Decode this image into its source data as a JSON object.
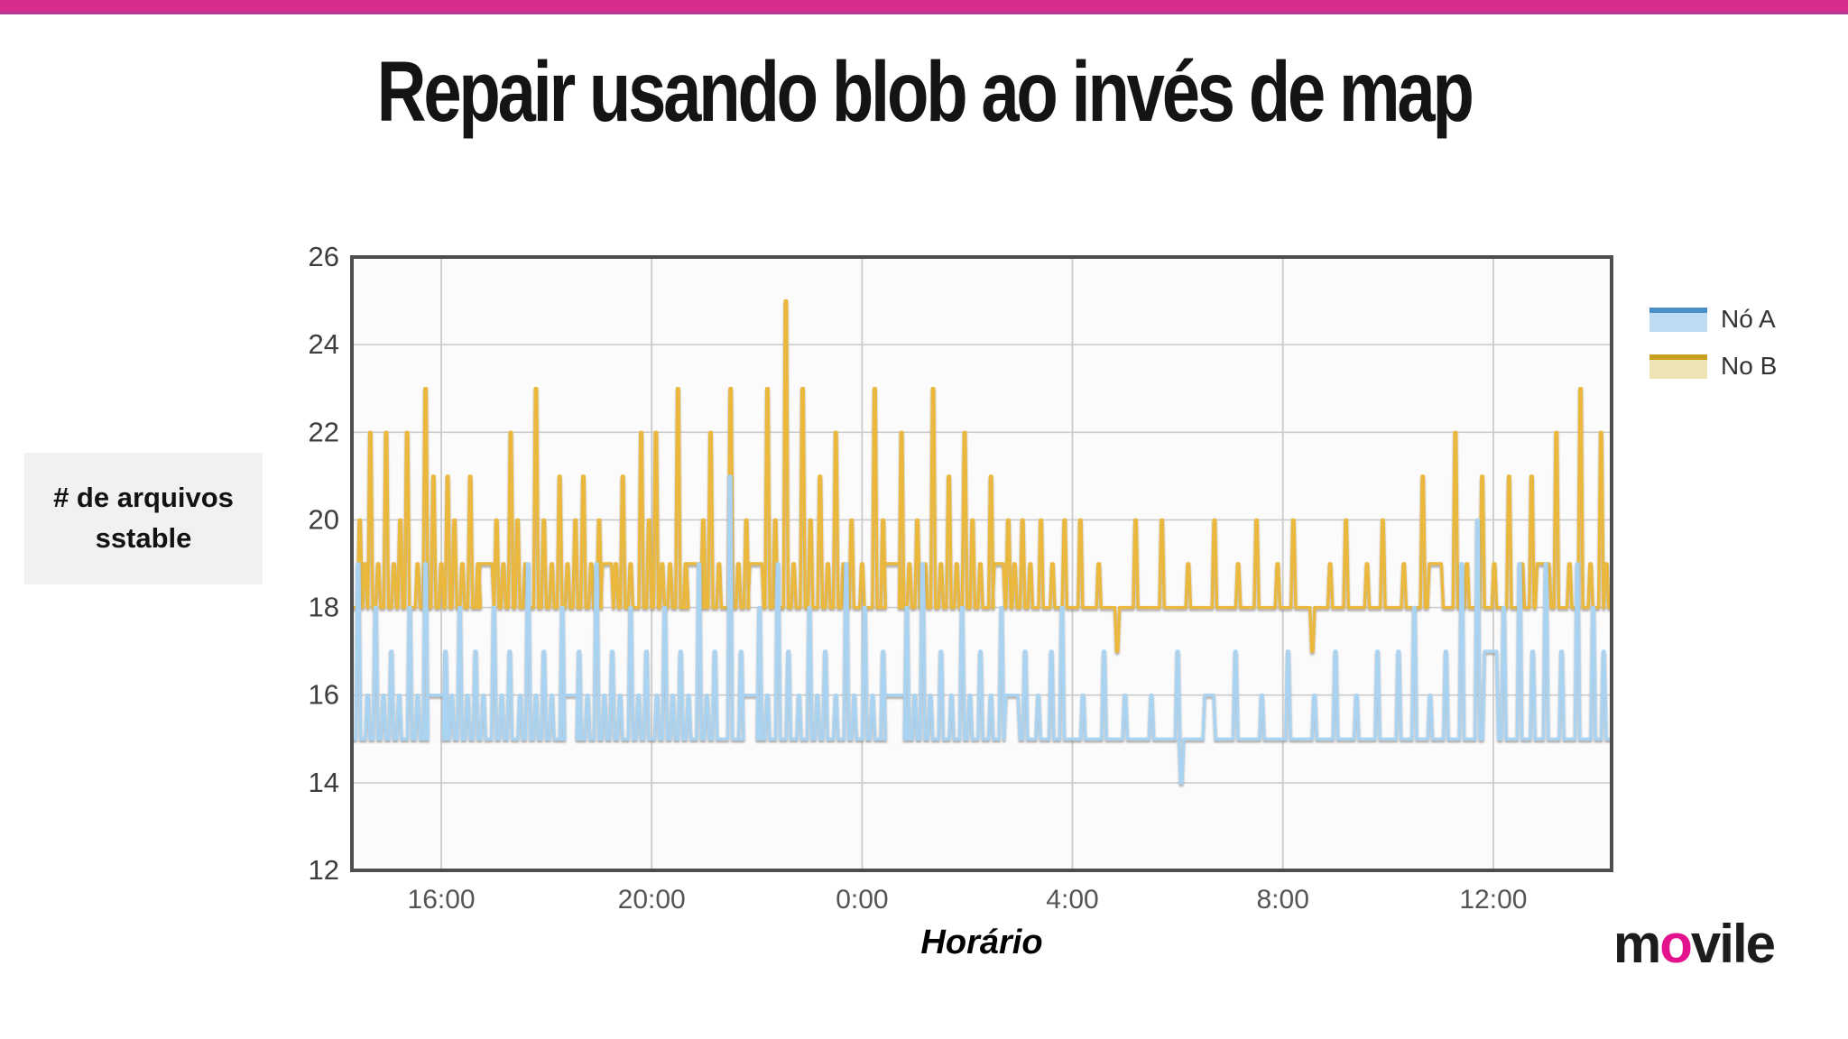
{
  "page": {
    "title": "Repair usando blob ao invés de map",
    "y_axis_label_line1": "# de arquivos",
    "y_axis_label_line2": "sstable",
    "x_axis_label": "Horário",
    "accent_pink": "#d62d8c",
    "accent_pink_dark": "#b13a92",
    "logo": {
      "part1": "m",
      "part2": "o",
      "part3": "vile",
      "o_color": "#e3138d"
    }
  },
  "chart_data": {
    "type": "line",
    "title": "",
    "xlabel": "Horário",
    "ylabel": "# de arquivos sstable",
    "grid": true,
    "legend_position": "right-outside",
    "x_range_hours": [
      14.3,
      38.25
    ],
    "ylim": [
      12,
      26
    ],
    "y_ticks": [
      12,
      14,
      16,
      18,
      20,
      22,
      24,
      26
    ],
    "x_ticks": [
      {
        "t": 16,
        "label": "16:00"
      },
      {
        "t": 20,
        "label": "20:00"
      },
      {
        "t": 24,
        "label": "0:00"
      },
      {
        "t": 28,
        "label": "4:00"
      },
      {
        "t": 32,
        "label": "8:00"
      },
      {
        "t": 36,
        "label": "12:00"
      }
    ],
    "frame_color": "#4d4d52",
    "gridline_color": "#cbcbcb",
    "plot_bg": "#fcfbfc",
    "tick_label_color": "#3d3d3d",
    "series": [
      {
        "name": "Nó A",
        "baseline": 15,
        "stroke": "#a9d3f1",
        "legend_stroke": "#4a8fc7",
        "legend_fill": "#bddcf4",
        "spikes": [
          [
            14.42,
            19
          ],
          [
            14.6,
            16
          ],
          [
            14.75,
            18
          ],
          [
            14.9,
            16
          ],
          [
            15.05,
            17
          ],
          [
            15.2,
            16
          ],
          [
            15.4,
            18
          ],
          [
            15.55,
            16
          ],
          [
            15.7,
            19
          ],
          [
            15.9,
            16,
            0.2
          ],
          [
            16.08,
            17
          ],
          [
            16.2,
            16
          ],
          [
            16.35,
            18
          ],
          [
            16.5,
            16
          ],
          [
            16.65,
            17
          ],
          [
            16.8,
            16
          ],
          [
            17.0,
            18
          ],
          [
            17.15,
            16
          ],
          [
            17.3,
            17
          ],
          [
            17.5,
            16
          ],
          [
            17.65,
            19
          ],
          [
            17.8,
            16
          ],
          [
            17.95,
            17
          ],
          [
            18.1,
            16
          ],
          [
            18.3,
            18
          ],
          [
            18.45,
            16,
            0.18
          ],
          [
            18.62,
            17
          ],
          [
            18.78,
            16
          ],
          [
            18.95,
            19
          ],
          [
            19.1,
            16
          ],
          [
            19.25,
            17
          ],
          [
            19.4,
            16
          ],
          [
            19.6,
            18
          ],
          [
            19.75,
            16
          ],
          [
            19.9,
            17
          ],
          [
            20.1,
            16
          ],
          [
            20.25,
            18
          ],
          [
            20.4,
            16
          ],
          [
            20.55,
            17
          ],
          [
            20.7,
            16
          ],
          [
            20.9,
            19
          ],
          [
            21.05,
            16
          ],
          [
            21.2,
            17
          ],
          [
            21.49,
            21
          ],
          [
            21.7,
            17
          ],
          [
            21.85,
            16,
            0.2
          ],
          [
            22.05,
            18
          ],
          [
            22.2,
            16
          ],
          [
            22.4,
            19
          ],
          [
            22.6,
            17
          ],
          [
            22.8,
            16
          ],
          [
            23.0,
            18
          ],
          [
            23.15,
            16
          ],
          [
            23.3,
            17
          ],
          [
            23.5,
            16
          ],
          [
            23.7,
            19
          ],
          [
            23.85,
            16
          ],
          [
            24.05,
            18
          ],
          [
            24.2,
            16
          ],
          [
            24.4,
            17
          ],
          [
            24.6,
            16,
            0.25
          ],
          [
            24.85,
            18
          ],
          [
            25.0,
            16
          ],
          [
            25.15,
            19
          ],
          [
            25.3,
            16
          ],
          [
            25.5,
            17
          ],
          [
            25.7,
            16
          ],
          [
            25.9,
            18
          ],
          [
            26.05,
            16
          ],
          [
            26.25,
            17
          ],
          [
            26.45,
            16
          ],
          [
            26.65,
            18
          ],
          [
            26.85,
            16,
            0.15
          ],
          [
            27.1,
            17
          ],
          [
            27.35,
            16
          ],
          [
            27.6,
            17
          ],
          [
            27.8,
            18
          ],
          [
            28.2,
            16
          ],
          [
            28.6,
            17
          ],
          [
            29.0,
            16
          ],
          [
            29.5,
            16
          ],
          [
            30.0,
            17
          ],
          [
            30.07,
            14
          ],
          [
            30.6,
            16,
            0.12
          ],
          [
            31.1,
            17
          ],
          [
            31.6,
            16
          ],
          [
            32.1,
            17
          ],
          [
            32.6,
            16
          ],
          [
            33.0,
            17
          ],
          [
            33.4,
            16
          ],
          [
            33.8,
            17
          ],
          [
            34.2,
            17
          ],
          [
            34.5,
            18
          ],
          [
            34.8,
            16
          ],
          [
            35.1,
            17
          ],
          [
            35.4,
            19
          ],
          [
            35.7,
            20
          ],
          [
            35.95,
            17,
            0.15
          ],
          [
            36.2,
            18
          ],
          [
            36.5,
            19
          ],
          [
            36.75,
            17
          ],
          [
            37.0,
            19
          ],
          [
            37.3,
            17
          ],
          [
            37.6,
            19
          ],
          [
            37.9,
            18
          ],
          [
            38.1,
            17
          ]
        ]
      },
      {
        "name": "No B",
        "baseline": 18,
        "stroke": "#e9b83e",
        "legend_stroke": "#c7a01f",
        "legend_fill": "#eee3b4",
        "spikes": [
          [
            14.45,
            20
          ],
          [
            14.55,
            19
          ],
          [
            14.65,
            22
          ],
          [
            14.8,
            19
          ],
          [
            14.95,
            22
          ],
          [
            15.1,
            19
          ],
          [
            15.22,
            20
          ],
          [
            15.35,
            22
          ],
          [
            15.55,
            19
          ],
          [
            15.7,
            23
          ],
          [
            15.85,
            21
          ],
          [
            16.0,
            19
          ],
          [
            16.12,
            21
          ],
          [
            16.25,
            20
          ],
          [
            16.4,
            19
          ],
          [
            16.55,
            21
          ],
          [
            16.7,
            19
          ],
          [
            16.85,
            19,
            0.15
          ],
          [
            17.05,
            20
          ],
          [
            17.18,
            19
          ],
          [
            17.32,
            22
          ],
          [
            17.45,
            20
          ],
          [
            17.6,
            19
          ],
          [
            17.8,
            23
          ],
          [
            17.95,
            20
          ],
          [
            18.1,
            19
          ],
          [
            18.25,
            21
          ],
          [
            18.4,
            19
          ],
          [
            18.55,
            20
          ],
          [
            18.7,
            21
          ],
          [
            18.85,
            19
          ],
          [
            19.0,
            20
          ],
          [
            19.15,
            19,
            0.12
          ],
          [
            19.32,
            19
          ],
          [
            19.45,
            21
          ],
          [
            19.6,
            19
          ],
          [
            19.8,
            22
          ],
          [
            19.95,
            20
          ],
          [
            20.08,
            22
          ],
          [
            20.2,
            19
          ],
          [
            20.35,
            19
          ],
          [
            20.5,
            23
          ],
          [
            20.65,
            19
          ],
          [
            20.8,
            19,
            0.18
          ],
          [
            20.98,
            20
          ],
          [
            21.12,
            22
          ],
          [
            21.28,
            19
          ],
          [
            21.5,
            23
          ],
          [
            21.65,
            19
          ],
          [
            21.8,
            20
          ],
          [
            21.98,
            19,
            0.15
          ],
          [
            22.2,
            23
          ],
          [
            22.35,
            20
          ],
          [
            22.55,
            25
          ],
          [
            22.7,
            19
          ],
          [
            22.87,
            23
          ],
          [
            23.02,
            20
          ],
          [
            23.2,
            21
          ],
          [
            23.35,
            19
          ],
          [
            23.5,
            22
          ],
          [
            23.65,
            19
          ],
          [
            23.8,
            20
          ],
          [
            24.0,
            19
          ],
          [
            24.24,
            23
          ],
          [
            24.4,
            20
          ],
          [
            24.55,
            19,
            0.2
          ],
          [
            24.75,
            22
          ],
          [
            24.9,
            19
          ],
          [
            25.05,
            20
          ],
          [
            25.2,
            19
          ],
          [
            25.35,
            23
          ],
          [
            25.5,
            19
          ],
          [
            25.65,
            21
          ],
          [
            25.8,
            19
          ],
          [
            25.95,
            22
          ],
          [
            26.1,
            20
          ],
          [
            26.25,
            19
          ],
          [
            26.45,
            21
          ],
          [
            26.6,
            19,
            0.12
          ],
          [
            26.78,
            20
          ],
          [
            26.9,
            19
          ],
          [
            27.05,
            20
          ],
          [
            27.2,
            19
          ],
          [
            27.4,
            20
          ],
          [
            27.62,
            19
          ],
          [
            27.85,
            20
          ],
          [
            28.15,
            20
          ],
          [
            28.5,
            19
          ],
          [
            28.85,
            17
          ],
          [
            29.2,
            20
          ],
          [
            29.7,
            20
          ],
          [
            30.2,
            19
          ],
          [
            30.7,
            20
          ],
          [
            31.15,
            19
          ],
          [
            31.5,
            20
          ],
          [
            31.9,
            19
          ],
          [
            32.2,
            20
          ],
          [
            32.56,
            17
          ],
          [
            32.9,
            19
          ],
          [
            33.2,
            20
          ],
          [
            33.6,
            19
          ],
          [
            33.9,
            20
          ],
          [
            34.3,
            19
          ],
          [
            34.66,
            21
          ],
          [
            34.9,
            19,
            0.15
          ],
          [
            35.28,
            22
          ],
          [
            35.5,
            19
          ],
          [
            35.79,
            21
          ],
          [
            36.02,
            19
          ],
          [
            36.3,
            21
          ],
          [
            36.55,
            19
          ],
          [
            36.73,
            21
          ],
          [
            36.95,
            19,
            0.15
          ],
          [
            37.2,
            22
          ],
          [
            37.45,
            19
          ],
          [
            37.66,
            23
          ],
          [
            37.85,
            19
          ],
          [
            38.05,
            22
          ],
          [
            38.15,
            19
          ]
        ]
      }
    ]
  }
}
